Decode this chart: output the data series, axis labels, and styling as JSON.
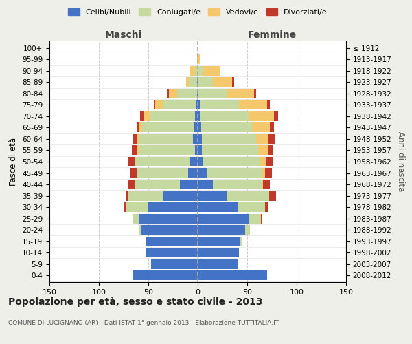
{
  "age_groups": [
    "0-4",
    "5-9",
    "10-14",
    "15-19",
    "20-24",
    "25-29",
    "30-34",
    "35-39",
    "40-44",
    "45-49",
    "50-54",
    "55-59",
    "60-64",
    "65-69",
    "70-74",
    "75-79",
    "80-84",
    "85-89",
    "90-94",
    "95-99",
    "100+"
  ],
  "birth_years": [
    "2008-2012",
    "2003-2007",
    "1998-2002",
    "1993-1997",
    "1988-1992",
    "1983-1987",
    "1978-1982",
    "1973-1977",
    "1968-1972",
    "1963-1967",
    "1958-1962",
    "1953-1957",
    "1948-1952",
    "1943-1947",
    "1938-1942",
    "1933-1937",
    "1928-1932",
    "1923-1927",
    "1918-1922",
    "1913-1917",
    "≤ 1912"
  ],
  "maschi": {
    "celibi": [
      65,
      47,
      52,
      52,
      57,
      60,
      50,
      35,
      18,
      10,
      8,
      3,
      5,
      4,
      3,
      2,
      1,
      1,
      0,
      0,
      0
    ],
    "coniugati": [
      0,
      0,
      0,
      0,
      2,
      5,
      22,
      35,
      45,
      52,
      55,
      57,
      55,
      52,
      45,
      33,
      20,
      8,
      3,
      0,
      0
    ],
    "vedovi": [
      0,
      0,
      0,
      0,
      0,
      0,
      0,
      0,
      0,
      0,
      1,
      2,
      2,
      3,
      7,
      8,
      8,
      3,
      5,
      1,
      0
    ],
    "divorziati": [
      0,
      0,
      0,
      0,
      0,
      1,
      2,
      3,
      7,
      7,
      7,
      5,
      4,
      3,
      3,
      1,
      2,
      0,
      0,
      0,
      0
    ]
  },
  "femmine": {
    "nubili": [
      70,
      40,
      42,
      43,
      48,
      52,
      40,
      30,
      15,
      10,
      5,
      4,
      4,
      3,
      2,
      2,
      1,
      0,
      0,
      0,
      0
    ],
    "coniugate": [
      0,
      0,
      0,
      2,
      5,
      12,
      28,
      42,
      50,
      55,
      58,
      57,
      55,
      52,
      50,
      40,
      28,
      15,
      5,
      0,
      0
    ],
    "vedove": [
      0,
      0,
      0,
      0,
      0,
      0,
      0,
      0,
      1,
      3,
      6,
      10,
      12,
      18,
      25,
      28,
      28,
      20,
      18,
      2,
      0
    ],
    "divorziate": [
      0,
      0,
      0,
      0,
      0,
      1,
      3,
      7,
      7,
      7,
      7,
      5,
      7,
      4,
      4,
      3,
      2,
      2,
      0,
      0,
      0
    ]
  },
  "colors": {
    "celibi_nubili": "#4472c4",
    "coniugati": "#c5d9a0",
    "vedovi": "#f5c96b",
    "divorziati": "#c0392b"
  },
  "xlim": 150,
  "title": "Popolazione per età, sesso e stato civile - 2013",
  "subtitle": "COMUNE DI LUCIGNANO (AR) - Dati ISTAT 1° gennaio 2013 - Elaborazione TUTTITALIA.IT",
  "ylabel": "Fasce di età",
  "ylabel_right": "Anni di nascita",
  "legend_labels": [
    "Celibi/Nubili",
    "Coniugati/e",
    "Vedovi/e",
    "Divorziati/e"
  ],
  "bg_color": "#efefea",
  "plot_bg_color": "#ffffff",
  "maschi_label": "Maschi",
  "femmine_label": "Femmine"
}
